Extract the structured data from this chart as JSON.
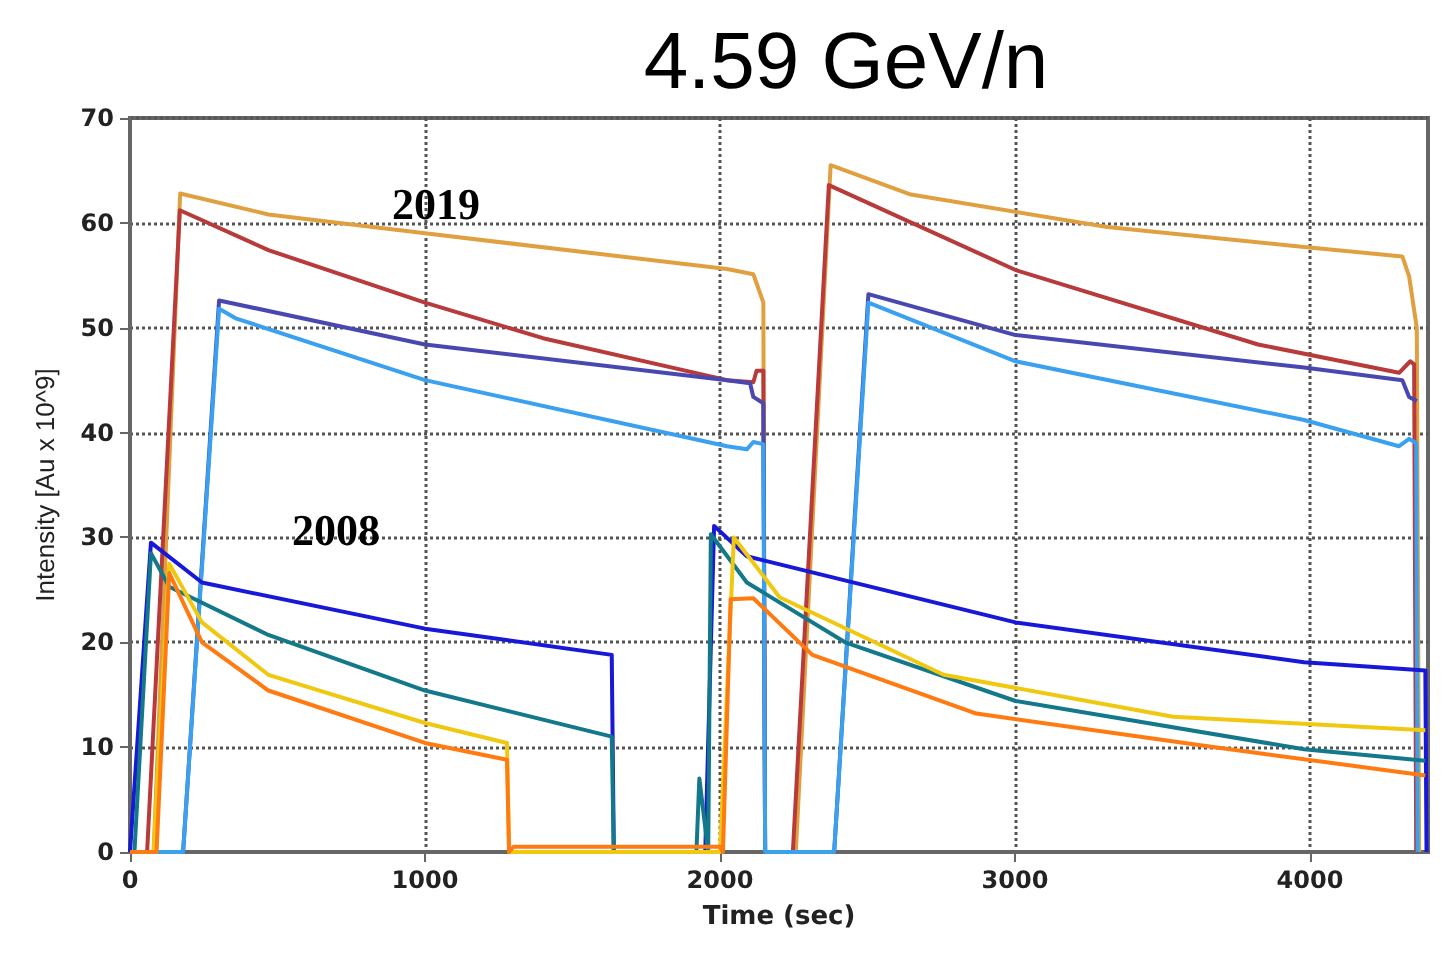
{
  "chart_data": {
    "type": "line",
    "title": "4.59 GeV/n",
    "xlabel": "Time (sec)",
    "ylabel": "Intensity [Au x 10^9]",
    "xlim": [
      0,
      4400
    ],
    "xticks": [
      0,
      1000,
      2000,
      3000,
      4000
    ],
    "ylim": [
      0,
      70
    ],
    "yticks": [
      0,
      10,
      20,
      30,
      40,
      50,
      60,
      70
    ],
    "grid": true,
    "marker": "none",
    "line_style": "solid",
    "annotations": [
      "2019",
      "2008"
    ],
    "series": [
      {
        "color": "#e0a040",
        "x": [
          0,
          80,
          170,
          469,
          1000,
          2024,
          2113,
          2147,
          2153,
          2257,
          2375,
          2647,
          3313,
          3980,
          4313,
          4336,
          4362,
          4370
        ],
        "values": [
          0,
          0,
          62.8,
          60.8,
          59,
          55.6,
          55.1,
          52.4,
          0,
          0,
          65.5,
          62.7,
          59.6,
          57.7,
          56.8,
          54.9,
          50,
          0
        ]
      },
      {
        "color": "#b83a3a",
        "x": [
          0,
          58,
          169,
          469,
          1000,
          1400,
          2024,
          2113,
          2124,
          2147,
          2153,
          2247,
          2369,
          3002,
          3824,
          4302,
          4340,
          4353,
          4360
        ],
        "values": [
          0,
          0,
          61.2,
          57.4,
          52.4,
          49,
          45,
          44.8,
          45.9,
          45.9,
          0,
          0,
          63.6,
          55.5,
          48.4,
          45.7,
          46.8,
          46.5,
          0
        ]
      },
      {
        "color": "#4848b0",
        "x": [
          0,
          180,
          302,
          1000,
          2024,
          2102,
          2113,
          2147,
          2153,
          2387,
          2503,
          3002,
          3980,
          4313,
          4336,
          4362
        ],
        "values": [
          0,
          0,
          52.6,
          48.4,
          45,
          44.7,
          43.4,
          42.8,
          0,
          0,
          53.2,
          49.3,
          46.2,
          45,
          43.4,
          43
        ]
      },
      {
        "color": "#3aa0f0",
        "x": [
          0,
          180,
          302,
          358,
          1000,
          2024,
          2091,
          2113,
          2147,
          2153,
          2387,
          2503,
          3002,
          3980,
          4302,
          4336,
          4360,
          4365
        ],
        "values": [
          0,
          0,
          51.8,
          50.9,
          45,
          38.7,
          38.4,
          39.1,
          38.9,
          0,
          0,
          52.4,
          46.8,
          41.2,
          38.7,
          39.4,
          39,
          0
        ]
      },
      {
        "color": "#1818d8",
        "x": [
          0,
          71,
          244,
          1000,
          1633,
          1640,
          1950,
          1980,
          2091,
          3002,
          3980,
          4391,
          4395
        ],
        "values": [
          0,
          29.5,
          25.7,
          21.3,
          18.8,
          0,
          0,
          31.1,
          28.2,
          21.9,
          18.1,
          17.3,
          0
        ]
      },
      {
        "color": "#12788a",
        "x": [
          0,
          15,
          71,
          133,
          469,
          1000,
          1633,
          1640,
          1920,
          1930,
          1960,
          1969,
          2091,
          2424,
          3002,
          3980,
          4391
        ],
        "values": [
          0,
          0,
          28.5,
          25.3,
          20.7,
          15.4,
          11,
          0,
          0,
          7,
          0,
          30.3,
          25.7,
          20,
          14.4,
          9.8,
          8.7
        ]
      },
      {
        "color": "#f0c810",
        "x": [
          0,
          80,
          133,
          244,
          469,
          1000,
          1278,
          1285,
          2000,
          2047,
          2202,
          2758,
          3536,
          4391
        ],
        "values": [
          0,
          0,
          27.5,
          21.9,
          16.9,
          12.3,
          10.4,
          0,
          0,
          30,
          24.3,
          16.9,
          12.9,
          11.6
        ]
      },
      {
        "color": "#ff7a10",
        "x": [
          0,
          90,
          133,
          244,
          469,
          1000,
          1278,
          1285,
          1300,
          2000,
          2010,
          2036,
          2113,
          2313,
          2869,
          3647,
          4391
        ],
        "values": [
          0,
          0,
          26.6,
          20,
          15.4,
          10.4,
          8.8,
          0,
          0.5,
          0.5,
          0,
          24.1,
          24.2,
          18.8,
          13.2,
          10.1,
          7.3
        ]
      }
    ]
  }
}
